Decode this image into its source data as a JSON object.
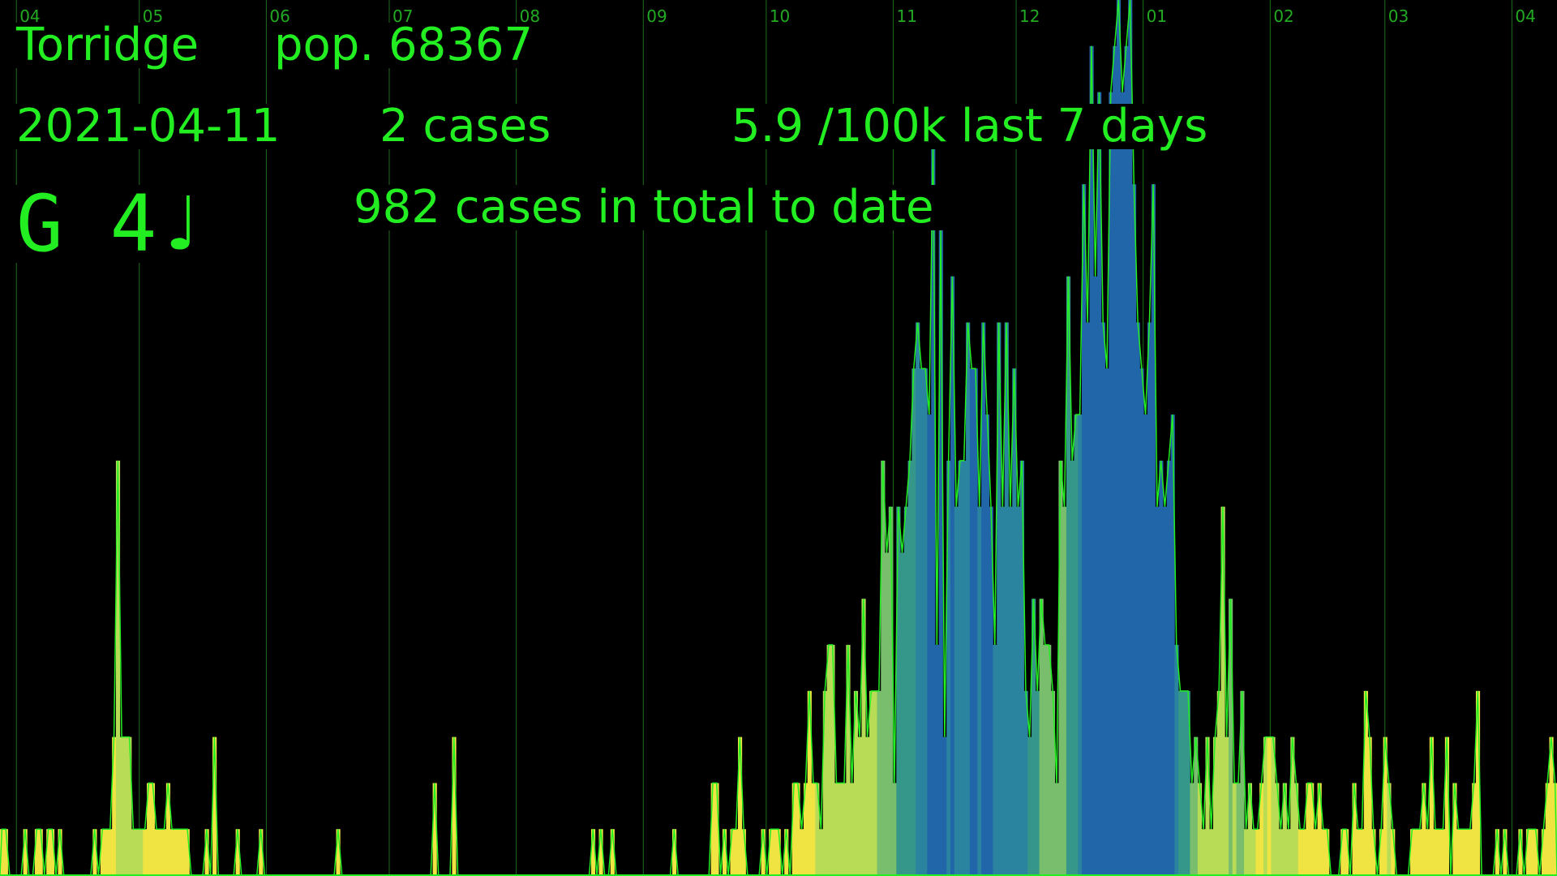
{
  "header": {
    "area": "Torridge",
    "population": "pop. 68367",
    "date": "2021-04-11",
    "cases_today": "2 cases",
    "rate": "5.9 /100k last 7 days",
    "total": "982 cases in total to date",
    "note": "G 4♩"
  },
  "colors": {
    "background": "#000000",
    "text": "#22ee22",
    "gridline": "#1c6e1c",
    "month_label": "#22aa22",
    "outline": "#22ee22",
    "bar_scale": [
      "#f0e442",
      "#b8dc55",
      "#78be6c",
      "#35978a",
      "#2a84a0",
      "#2166a8"
    ]
  },
  "chart_data": {
    "type": "bar",
    "title": "",
    "xlabel": "",
    "ylabel": "",
    "x_ticks": [
      "04",
      "05",
      "06",
      "07",
      "08",
      "09",
      "10",
      "11",
      "12",
      "01",
      "02",
      "03",
      "04"
    ],
    "x_range": [
      "2020-03-28",
      "2021-04-11"
    ],
    "x_tick_dates": [
      "2020-04-01",
      "2020-05-01",
      "2020-06-01",
      "2020-07-01",
      "2020-08-01",
      "2020-09-01",
      "2020-10-01",
      "2020-11-01",
      "2020-12-01",
      "2021-01-01",
      "2021-02-01",
      "2021-03-01",
      "2021-04-01"
    ],
    "ylim": [
      0,
      19
    ],
    "grid": "vertical month lines",
    "series": [
      {
        "values": [
          1,
          1,
          0,
          0,
          0,
          0,
          1,
          0,
          0,
          1,
          1,
          0,
          1,
          1,
          0,
          1,
          0,
          0,
          0,
          0,
          0,
          0,
          0,
          0,
          1,
          0,
          1,
          1,
          1,
          3,
          9,
          3,
          3,
          3,
          1,
          1,
          1,
          1,
          2,
          2,
          1,
          1,
          1,
          2,
          1,
          1,
          1,
          1,
          1,
          0,
          0,
          0,
          0,
          1,
          0,
          3,
          0,
          0,
          0,
          0,
          0,
          1,
          0,
          0,
          0,
          0,
          0,
          1,
          0,
          0,
          0,
          0,
          0,
          0,
          0,
          0,
          0,
          0,
          0,
          0,
          0,
          0,
          0,
          0,
          0,
          0,
          0,
          1,
          0,
          0,
          0,
          0,
          0,
          0,
          0,
          0,
          0,
          0,
          0,
          0,
          0,
          0,
          0,
          0,
          0,
          0,
          0,
          0,
          0,
          0,
          0,
          0,
          2,
          0,
          0,
          0,
          0,
          3,
          0,
          0,
          0,
          0,
          0,
          0,
          0,
          0,
          0,
          0,
          0,
          0,
          0,
          0,
          0,
          0,
          0,
          0,
          0,
          0,
          0,
          0,
          0,
          0,
          0,
          0,
          0,
          0,
          0,
          0,
          0,
          0,
          0,
          0,
          0,
          1,
          0,
          1,
          0,
          0,
          1,
          0,
          0,
          0,
          0,
          0,
          0,
          0,
          0,
          0,
          0,
          0,
          0,
          0,
          0,
          0,
          1,
          0,
          0,
          0,
          0,
          0,
          0,
          0,
          0,
          0,
          2,
          2,
          0,
          1,
          0,
          1,
          1,
          3,
          1,
          0,
          0,
          0,
          0,
          1,
          0,
          1,
          1,
          1,
          0,
          1,
          0,
          2,
          2,
          1,
          2,
          4,
          2,
          2,
          1,
          4,
          5,
          5,
          2,
          2,
          2,
          5,
          2,
          4,
          3,
          6,
          3,
          4,
          4,
          4,
          9,
          7,
          8,
          2,
          8,
          7,
          8,
          9,
          11,
          12,
          11,
          11,
          10,
          16,
          5,
          14,
          3,
          9,
          13,
          8,
          9,
          9,
          12,
          11,
          11,
          8,
          12,
          10,
          8,
          5,
          12,
          8,
          12,
          8,
          11,
          8,
          9,
          4,
          3,
          6,
          4,
          6,
          5,
          5,
          4,
          2,
          9,
          8,
          13,
          9,
          10,
          10,
          15,
          12,
          18,
          13,
          17,
          12,
          11,
          17,
          18,
          19,
          17,
          18,
          19,
          15,
          12,
          11,
          10,
          12,
          15,
          8,
          9,
          8,
          9,
          10,
          5,
          4,
          4,
          4,
          2,
          3,
          2,
          1,
          3,
          1,
          3,
          4,
          8,
          3,
          6,
          2,
          2,
          4,
          1,
          2,
          1,
          1,
          2,
          3,
          3,
          3,
          2,
          1,
          2,
          1,
          3,
          2,
          1,
          1,
          2,
          2,
          1,
          2,
          1,
          1,
          0,
          0,
          0,
          1,
          1,
          0,
          2,
          1,
          1,
          4,
          3,
          1,
          0,
          1,
          3,
          2,
          1,
          0,
          0,
          0,
          0,
          1,
          1,
          1,
          2,
          1,
          3,
          1,
          1,
          1,
          3,
          0,
          2,
          1,
          1,
          1,
          1,
          2,
          4,
          0,
          0,
          0,
          0,
          1,
          0,
          1,
          0,
          0,
          0,
          1,
          0,
          1,
          1,
          1,
          0,
          1,
          2,
          3,
          2
        ]
      }
    ]
  }
}
